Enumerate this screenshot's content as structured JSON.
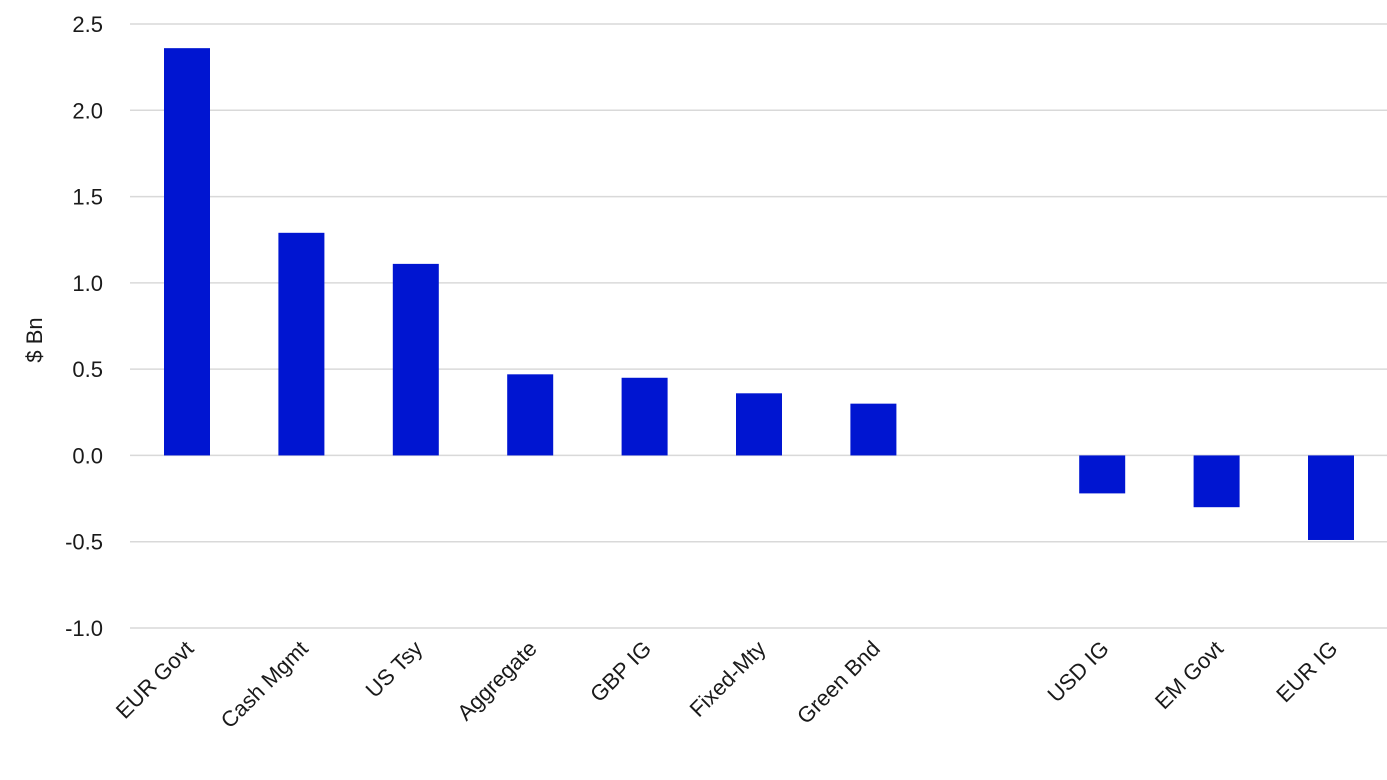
{
  "chart_data": {
    "type": "bar",
    "ylabel": "$ Bn",
    "xlabel": "",
    "ylim": [
      -1.0,
      2.5
    ],
    "yticks": [
      2.5,
      2.0,
      1.5,
      1.0,
      0.5,
      0.0,
      -0.5,
      -1.0
    ],
    "ytick_labels": [
      "2.5",
      "2.0",
      "1.5",
      "1.0",
      "0.5",
      "0.0",
      "-0.5",
      "-1.0"
    ],
    "grid": true,
    "categories": [
      "EUR Govt",
      "Cash Mgmt",
      "US Tsy",
      "Aggregate",
      "GBP IG",
      "Fixed-Mty",
      "Green Bnd",
      "",
      "USD IG",
      "EM Govt",
      "EUR IG"
    ],
    "values": [
      2.36,
      1.29,
      1.11,
      0.47,
      0.45,
      0.36,
      0.3,
      null,
      -0.22,
      -0.3,
      -0.49
    ],
    "bar_color": "#0015D1"
  }
}
